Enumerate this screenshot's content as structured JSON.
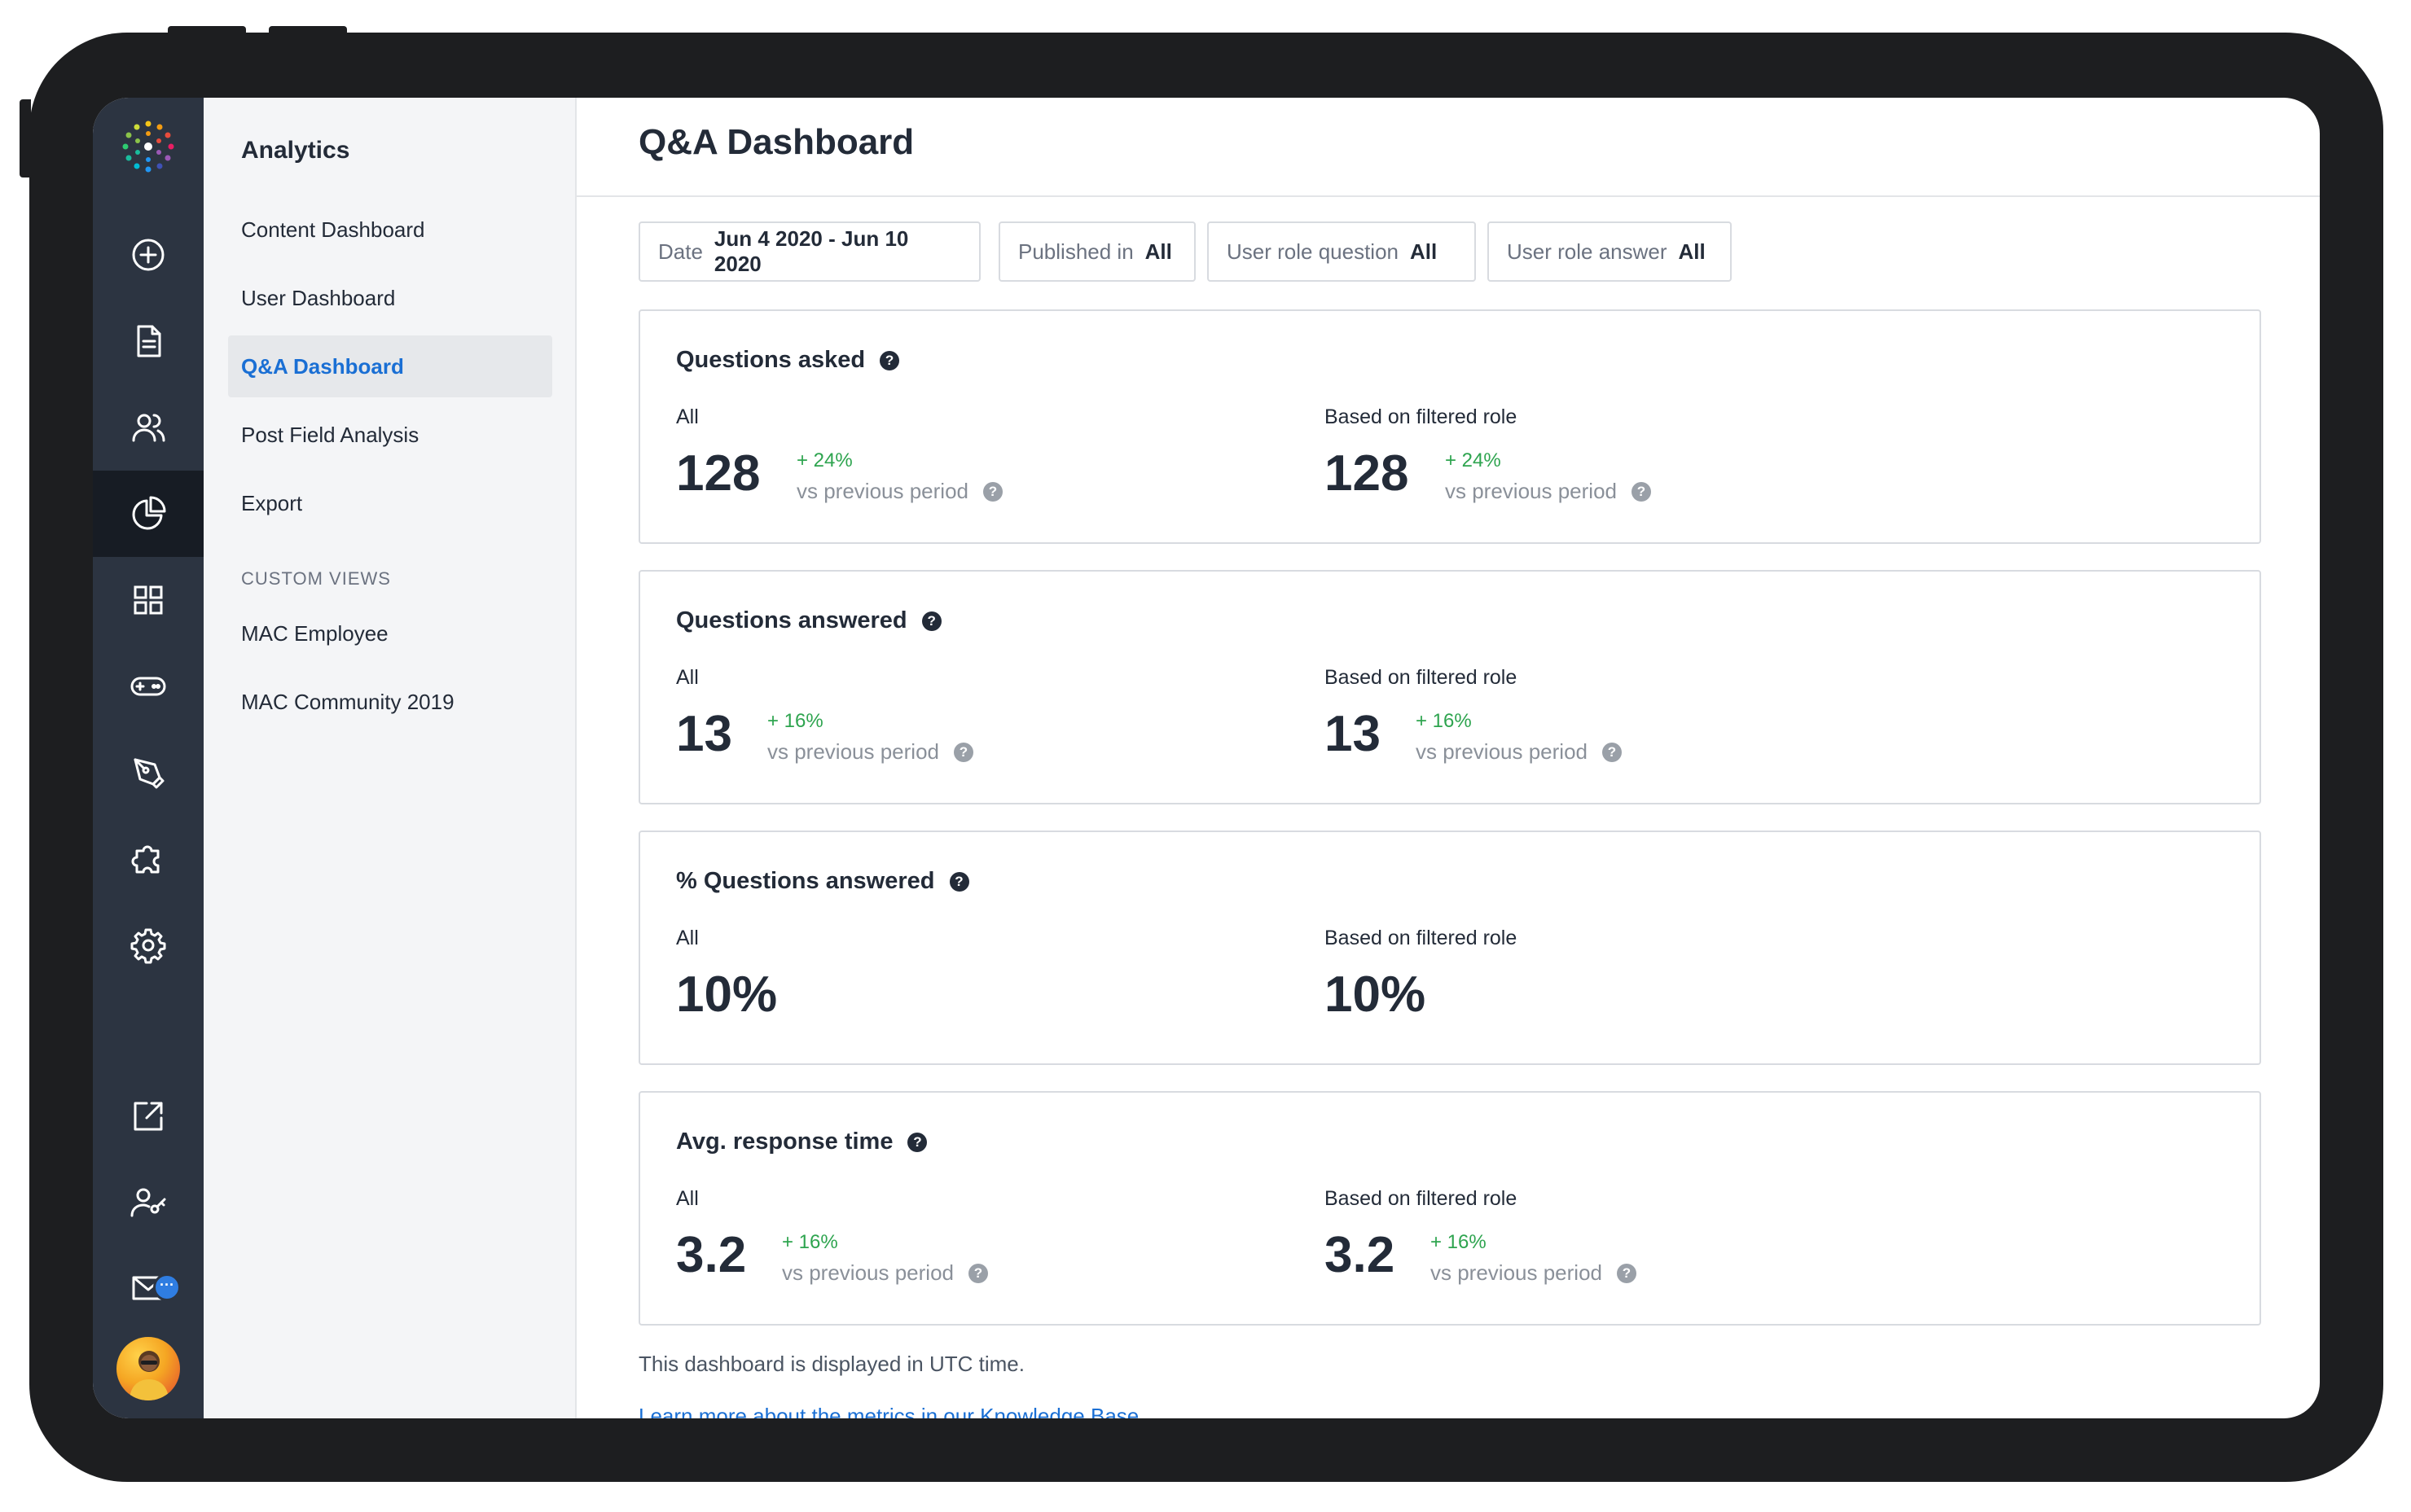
{
  "sidebar": {
    "title": "Analytics",
    "items": [
      {
        "label": "Content Dashboard"
      },
      {
        "label": "User Dashboard"
      },
      {
        "label": "Q&A Dashboard"
      },
      {
        "label": "Post Field Analysis"
      },
      {
        "label": "Export"
      }
    ],
    "custom_views_heading": "CUSTOM VIEWS",
    "custom_views": [
      {
        "label": "MAC Employee"
      },
      {
        "label": "MAC Community 2019"
      }
    ]
  },
  "rail": {
    "icons": [
      "add-icon",
      "document-icon",
      "users-icon",
      "analytics-icon",
      "apps-grid-icon",
      "gamepad-icon",
      "pen-tool-icon",
      "puzzle-icon",
      "gear-icon",
      "external-link-icon",
      "user-key-icon",
      "mail-icon"
    ],
    "active": "analytics-icon",
    "mail_badge": "···"
  },
  "header": {
    "title": "Q&A Dashboard"
  },
  "filters": [
    {
      "label": "Date",
      "value": "Jun 4 2020 - Jun 10 2020"
    },
    {
      "label": "Published in",
      "value": "All"
    },
    {
      "label": "User role question",
      "value": "All"
    },
    {
      "label": "User role answer",
      "value": "All"
    }
  ],
  "help_icon": "?",
  "cards": [
    {
      "title": "Questions asked",
      "left": {
        "label": "All",
        "value": "128",
        "delta": "+ 24%",
        "compare": "vs previous period"
      },
      "right": {
        "label": "Based on filtered role",
        "value": "128",
        "delta": "+ 24%",
        "compare": "vs previous period"
      }
    },
    {
      "title": "Questions answered",
      "left": {
        "label": "All",
        "value": "13",
        "delta": "+ 16%",
        "compare": "vs previous period"
      },
      "right": {
        "label": "Based on filtered role",
        "value": "13",
        "delta": "+ 16%",
        "compare": "vs previous period"
      }
    },
    {
      "title": "% Questions answered",
      "left": {
        "label": "All",
        "value": "10%"
      },
      "right": {
        "label": "Based on filtered role",
        "value": "10%"
      }
    },
    {
      "title": "Avg. response time",
      "left": {
        "label": "All",
        "value": "3.2",
        "delta": "+ 16%",
        "compare": "vs previous period"
      },
      "right": {
        "label": "Based on filtered role",
        "value": "3.2",
        "delta": "+ 16%",
        "compare": "vs previous period"
      }
    }
  ],
  "footer": {
    "note": "This dashboard is displayed in UTC time.",
    "link": "Learn more about the metrics in our Knowledge Base"
  },
  "colors": {
    "accent": "#1a6fd4",
    "positive": "#2ea44f",
    "rail": "#2c3441"
  }
}
